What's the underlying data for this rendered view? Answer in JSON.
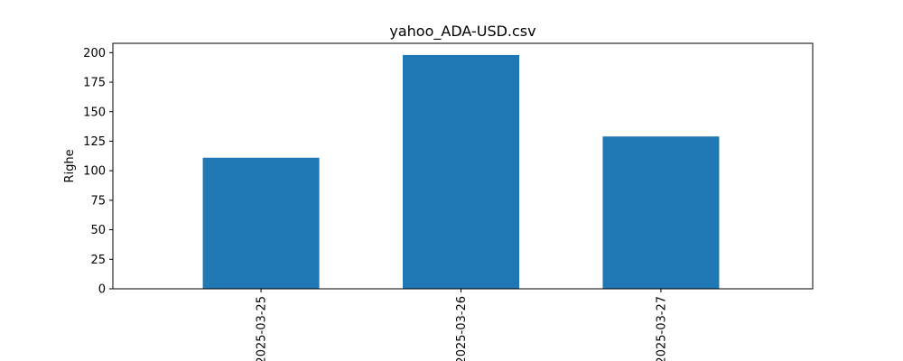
{
  "chart_data": {
    "type": "bar",
    "title": "yahoo_ADA-USD.csv",
    "xlabel": "",
    "ylabel": "Righe",
    "categories": [
      "2025-03-25",
      "2025-03-26",
      "2025-03-27"
    ],
    "values": [
      111,
      198,
      129
    ],
    "ylim": [
      0,
      207.9
    ],
    "yticks": [
      0,
      25,
      50,
      75,
      100,
      125,
      150,
      175,
      200
    ],
    "bar_color": "#1f77b4",
    "grid": false,
    "legend": "none"
  }
}
